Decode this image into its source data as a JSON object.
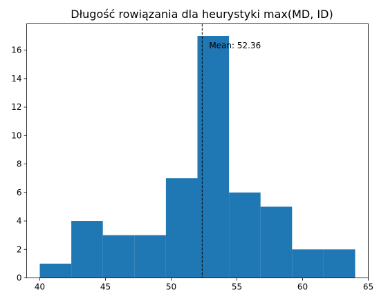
{
  "chart_data": {
    "type": "bar",
    "title": "Długość rowiązania dla heurystyki max(MD, ID)",
    "xlabel": "",
    "ylabel": "",
    "xlim": [
      39,
      65
    ],
    "ylim": [
      0,
      17.85
    ],
    "x_ticks": [
      40,
      45,
      50,
      55,
      60,
      65
    ],
    "y_ticks": [
      0,
      2,
      4,
      6,
      8,
      10,
      12,
      14,
      16
    ],
    "bins": [
      {
        "start": 40.0,
        "end": 42.4,
        "count": 1
      },
      {
        "start": 42.4,
        "end": 44.8,
        "count": 4
      },
      {
        "start": 44.8,
        "end": 47.2,
        "count": 3
      },
      {
        "start": 47.2,
        "end": 49.6,
        "count": 3
      },
      {
        "start": 49.6,
        "end": 52.0,
        "count": 7
      },
      {
        "start": 52.0,
        "end": 54.4,
        "count": 17
      },
      {
        "start": 54.4,
        "end": 56.8,
        "count": 6
      },
      {
        "start": 56.8,
        "end": 59.2,
        "count": 5
      },
      {
        "start": 59.2,
        "end": 61.6,
        "count": 2
      },
      {
        "start": 61.6,
        "end": 64.0,
        "count": 2
      }
    ],
    "mean": 52.36,
    "mean_label": "Mean: 52.36",
    "bar_color": "#1f77b4",
    "mean_line_color": "#000000",
    "grid": false,
    "legend": "none"
  }
}
